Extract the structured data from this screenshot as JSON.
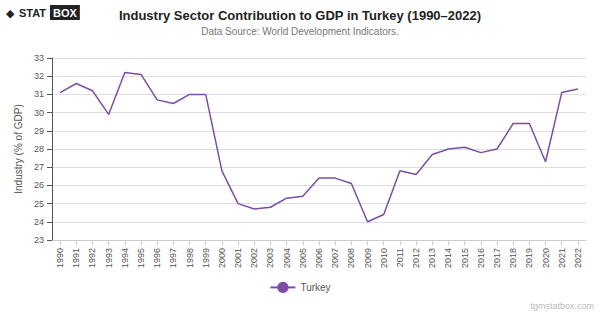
{
  "chart_data": {
    "type": "line",
    "title": "Industry Sector Contribution to GDP in Turkey (1990–2022)",
    "subtitle": "Data Source: World Development Indicators.",
    "ylabel": "Industry (% of GDP)",
    "annotations": [
      "◆",
      "STAT",
      "BOX",
      "tgmstatbox.com"
    ],
    "x": [
      1990,
      1991,
      1992,
      1993,
      1994,
      1995,
      1996,
      1997,
      1998,
      1999,
      2000,
      2001,
      2002,
      2003,
      2004,
      2005,
      2006,
      2007,
      2008,
      2009,
      2010,
      2011,
      2012,
      2013,
      2014,
      2015,
      2016,
      2017,
      2018,
      2019,
      2020,
      2021,
      2022
    ],
    "series": [
      {
        "name": "Turkey",
        "color": "#7b4fa6",
        "values": [
          31.1,
          31.6,
          31.2,
          29.9,
          32.2,
          32.1,
          30.7,
          30.5,
          31.0,
          31.0,
          26.8,
          25.0,
          24.7,
          24.8,
          25.3,
          25.4,
          26.4,
          26.4,
          26.1,
          24.0,
          24.4,
          26.8,
          26.6,
          27.7,
          28.0,
          28.1,
          27.8,
          28.0,
          29.4,
          29.4,
          27.3,
          31.1,
          31.3
        ]
      }
    ],
    "xlim": [
      1989.5,
      2022.5
    ],
    "xticks": [
      1990,
      1991,
      1992,
      1993,
      1994,
      1995,
      1996,
      1997,
      1998,
      1999,
      2000,
      2001,
      2002,
      2003,
      2004,
      2005,
      2006,
      2007,
      2008,
      2009,
      2010,
      2011,
      2012,
      2013,
      2014,
      2015,
      2016,
      2017,
      2018,
      2019,
      2020,
      2021,
      2022
    ],
    "ylim": [
      23,
      33
    ],
    "yticks": [
      23,
      24,
      25,
      26,
      27,
      28,
      29,
      30,
      31,
      32,
      33
    ],
    "grid": true,
    "legend": "bottom"
  }
}
